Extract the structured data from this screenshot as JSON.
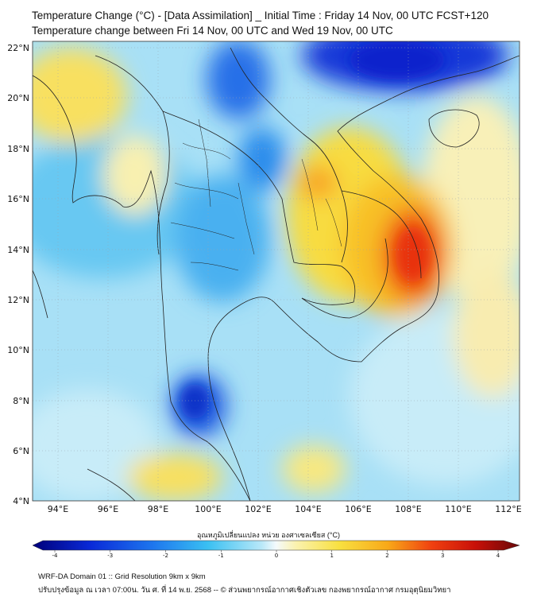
{
  "header": {
    "title_line1": "Temperature Change (°C) - [Data Assimilation] _ Initial Time : Friday 14 Nov, 00 UTC FCST+120",
    "title_line2": "Temperature change between Fri 14 Nov, 00 UTC and Wed 19 Nov, 00 UTC"
  },
  "map": {
    "lat_ticks": [
      "22°N",
      "20°N",
      "18°N",
      "16°N",
      "14°N",
      "12°N",
      "10°N",
      "8°N",
      "6°N",
      "4°N"
    ],
    "lon_ticks": [
      "94°E",
      "96°E",
      "98°E",
      "100°E",
      "102°E",
      "104°E",
      "106°E",
      "108°E",
      "110°E",
      "112°E"
    ],
    "extent": {
      "lon_min": 93.0,
      "lon_max": 112.5,
      "lat_min": 4.0,
      "lat_max": 22.3
    },
    "colors": {
      "strong_cooling": "#1030d8",
      "cooling": "#38b8f0",
      "neutral": "#e8f6fc",
      "warming": "#f8e050",
      "strong_warming": "#e84010"
    }
  },
  "colorbar": {
    "title": "อุณหภูมิเปลี่ยนแปลง หน่วย องศาเซลเซียส (°C)",
    "ticks": [
      "-4",
      "-3",
      "-2",
      "-1",
      "0",
      "1",
      "2",
      "3",
      "4"
    ],
    "min": -4,
    "max": 4
  },
  "footer": {
    "line1": "WRF-DA Domain 01 :: Grid Resolution 9km x 9km",
    "line2": "ปรับปรุงข้อมูล ณ เวลา 07:00น. วัน ศ. ที่ 14 พ.ย. 2568 -- © ส่วนพยากรณ์อากาศเชิงตัวเลข กองพยากรณ์อากาศ กรมอุตุนิยมวิทยา"
  }
}
